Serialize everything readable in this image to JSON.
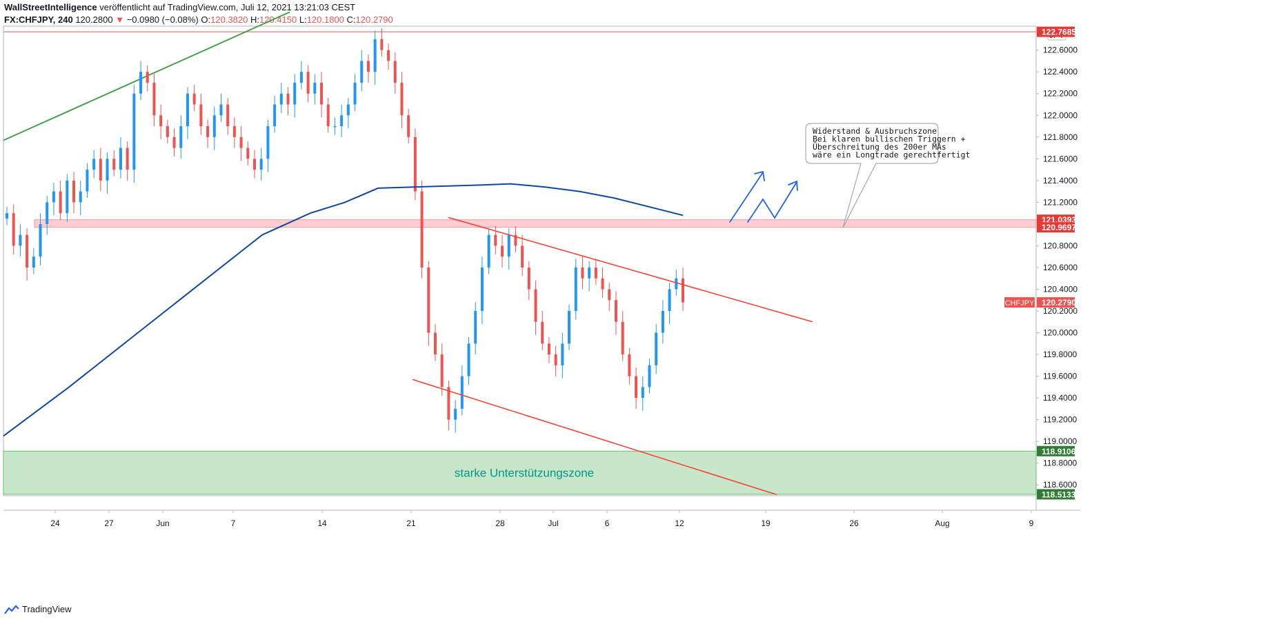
{
  "header": {
    "author": "WallStreetIntelligence",
    "published": "veröffentlicht auf TradingView.com, Juli 12, 2021 13:21:03 CEST",
    "symbol": "FX:CHFJPY, 240",
    "last": "120.2800",
    "change_arrow": "▼",
    "change": "−0.0980 (−0.08%)",
    "open_label": "O:",
    "open": "120.3820",
    "high_label": "H:",
    "high": "120.4150",
    "low_label": "L:",
    "low": "120.1800",
    "close_label": "C:",
    "close": "120.2790"
  },
  "footer": {
    "brand": "TradingView",
    "logo_icon": "tradingview-logo-icon"
  },
  "colors": {
    "up": "#2196f3",
    "down": "#ef5350",
    "ma": "#0d47a1",
    "trend": "#f44336",
    "green_line": "#43a047",
    "support_fill": "#c8e6c9",
    "resistance_fill": "#ffcdd2",
    "arrows": "#1e63e9"
  },
  "chart_data": {
    "type": "candlestick",
    "currency": "JPY",
    "ylim": [
      118.5,
      122.82
    ],
    "y_ticks": [
      "118.6000",
      "118.8000",
      "119.0000",
      "119.2000",
      "119.4000",
      "119.6000",
      "119.8000",
      "120.0000",
      "120.2000",
      "120.4000",
      "120.6000",
      "120.8000",
      "121.2000",
      "121.4000",
      "121.6000",
      "121.8000",
      "122.0000",
      "122.2000",
      "122.4000",
      "122.6000"
    ],
    "x_ticks": [
      "24",
      "27",
      "Jun",
      "7",
      "14",
      "21",
      "28",
      "Jul",
      "6",
      "12",
      "19",
      "26",
      "Aug",
      "9"
    ],
    "price_tags": [
      {
        "value": 122.7685,
        "text": "122.7685"
      },
      {
        "value": 121.0393,
        "text": "121.0393"
      },
      {
        "value": 120.9697,
        "text": "120.9697"
      },
      {
        "value": 120.279,
        "text": "120.2790",
        "symbol": "CHFJPY"
      },
      {
        "value": 118.9106,
        "text": "118.9106"
      },
      {
        "value": 118.5133,
        "text": "118.5133"
      }
    ],
    "horizontal_line": 122.7685,
    "resistance_zone": [
      120.9697,
      121.0393
    ],
    "support_zone": [
      118.5133,
      118.9106
    ],
    "support_label": "starke Unterstützungszone",
    "annotation": [
      "Widerstand & Ausbruchszone",
      "Bei klaren bullischen Triggern +",
      "Überschreitung des 200er MAs",
      "wäre ein Longtrade gerechtfertigt"
    ],
    "close_series": [
      121.1,
      120.8,
      120.9,
      120.6,
      120.7,
      121.0,
      121.2,
      121.3,
      121.1,
      121.4,
      121.2,
      121.3,
      121.5,
      121.6,
      121.4,
      121.6,
      121.5,
      121.7,
      121.5,
      122.2,
      122.4,
      122.3,
      122.0,
      121.9,
      121.8,
      121.7,
      121.9,
      122.2,
      122.1,
      121.9,
      121.8,
      122.0,
      122.1,
      121.9,
      121.8,
      121.7,
      121.6,
      121.5,
      121.6,
      121.9,
      122.1,
      122.2,
      122.1,
      122.3,
      122.4,
      122.2,
      122.3,
      122.1,
      121.9,
      121.9,
      122.0,
      122.1,
      122.3,
      122.5,
      122.4,
      122.7,
      122.6,
      122.5,
      122.3,
      122.0,
      121.8,
      121.3,
      120.6,
      120.0,
      119.8,
      119.5,
      119.2,
      119.3,
      119.6,
      119.9,
      120.2,
      120.6,
      120.9,
      120.8,
      120.7,
      120.9,
      120.8,
      120.6,
      120.4,
      120.1,
      119.9,
      119.8,
      119.7,
      119.9,
      120.2,
      120.6,
      120.5,
      120.6,
      120.5,
      120.4,
      120.3,
      120.1,
      119.8,
      119.6,
      119.4,
      119.5,
      119.7,
      120.0,
      120.2,
      120.4,
      120.5,
      120.28
    ],
    "ma200": [
      [
        5,
        119.05
      ],
      [
        100,
        119.5
      ],
      [
        200,
        120.0
      ],
      [
        300,
        120.5
      ],
      [
        380,
        120.9
      ],
      [
        450,
        121.1
      ],
      [
        500,
        121.2
      ],
      [
        548,
        121.33
      ],
      [
        600,
        121.34
      ],
      [
        650,
        121.35
      ],
      [
        700,
        121.36
      ],
      [
        740,
        121.37
      ],
      [
        790,
        121.34
      ],
      [
        840,
        121.3
      ],
      [
        890,
        121.24
      ],
      [
        940,
        121.16
      ],
      [
        990,
        121.08
      ]
    ],
    "trendlines": [
      {
        "from": [
          650,
          121.06
        ],
        "to": [
          1178,
          120.1
        ]
      },
      {
        "from": [
          598,
          119.57
        ],
        "to": [
          1126,
          118.51
        ]
      }
    ],
    "green_line": {
      "from": [
        5,
        121.77
      ],
      "to": [
        420,
        122.95
      ]
    }
  }
}
